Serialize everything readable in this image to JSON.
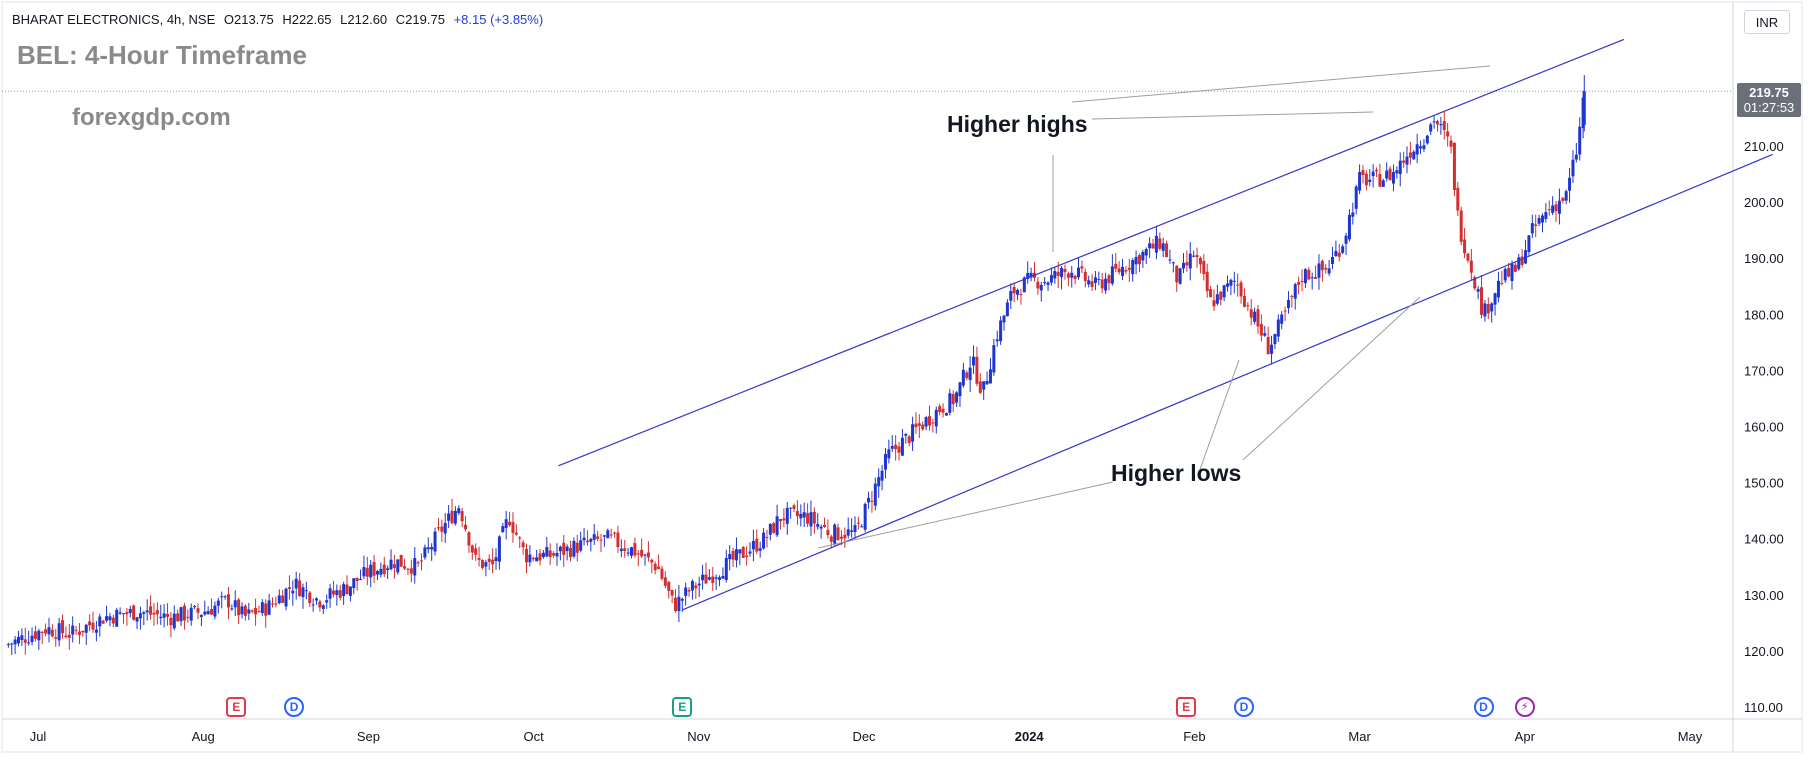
{
  "header": {
    "symbol": "BHARAT ELECTRONICS, 4h, NSE",
    "open": "O213.75",
    "high": "H222.65",
    "low": "L212.60",
    "close": "C219.75",
    "change": "+8.15 (+3.85%)"
  },
  "title": "BEL: 4-Hour Timeframe",
  "brand": "forexgdp.com",
  "currency": "INR",
  "price_tag": {
    "price": "219.75",
    "countdown": "01:27:53"
  },
  "annotations": {
    "higher_highs": "Higher highs",
    "higher_lows": "Higher lows"
  },
  "events": [
    {
      "type": "earnings",
      "label": "E",
      "month_index": 1.2,
      "color": "#e0394a"
    },
    {
      "type": "dividend",
      "label": "D",
      "month_index": 1.55,
      "color": "#2a62ff"
    },
    {
      "type": "earnings",
      "label": "E",
      "month_index": 3.9,
      "color": "#16a085"
    },
    {
      "type": "earnings",
      "label": "E",
      "month_index": 6.95,
      "color": "#e0394a"
    },
    {
      "type": "dividend",
      "label": "D",
      "month_index": 7.3,
      "color": "#2a62ff"
    },
    {
      "type": "dividend",
      "label": "D",
      "month_index": 8.75,
      "color": "#2a62ff"
    },
    {
      "type": "split",
      "label": "⚡",
      "month_index": 9.0,
      "color": "#9c27b0"
    }
  ],
  "colors": {
    "up": "#1e35d0",
    "down": "#d32f2f",
    "trendline": "#3333cc",
    "annotation_line": "#9e9e9e",
    "grid": "#f0f3fa"
  },
  "chart_data": {
    "type": "candlestick",
    "x_tick_labels": [
      "Jul",
      "Aug",
      "Sep",
      "Oct",
      "Nov",
      "Dec",
      "2024",
      "Feb",
      "Mar",
      "Apr",
      "May"
    ],
    "y_tick_labels": [
      "110.00",
      "120.00",
      "130.00",
      "140.00",
      "150.00",
      "160.00",
      "170.00",
      "180.00",
      "190.00",
      "200.00",
      "210.00"
    ],
    "y_range": [
      106.5,
      227.5
    ],
    "x_range_months": [
      -0.2,
      10.5
    ],
    "close_path_points": [
      [
        -0.2,
        121
      ],
      [
        0.05,
        124
      ],
      [
        0.2,
        123
      ],
      [
        0.4,
        126
      ],
      [
        0.6,
        127
      ],
      [
        0.8,
        126
      ],
      [
        1.0,
        127
      ],
      [
        1.15,
        129
      ],
      [
        1.25,
        126
      ],
      [
        1.4,
        128
      ],
      [
        1.55,
        132
      ],
      [
        1.7,
        129
      ],
      [
        1.85,
        131
      ],
      [
        2.0,
        134
      ],
      [
        2.15,
        136
      ],
      [
        2.3,
        135
      ],
      [
        2.45,
        142
      ],
      [
        2.55,
        146
      ],
      [
        2.65,
        136
      ],
      [
        2.75,
        135
      ],
      [
        2.85,
        144
      ],
      [
        2.95,
        137
      ],
      [
        3.1,
        137
      ],
      [
        3.3,
        139
      ],
      [
        3.45,
        140
      ],
      [
        3.6,
        138
      ],
      [
        3.75,
        135
      ],
      [
        3.85,
        128
      ],
      [
        3.95,
        131
      ],
      [
        4.1,
        134
      ],
      [
        4.25,
        137
      ],
      [
        4.4,
        140
      ],
      [
        4.5,
        144
      ],
      [
        4.65,
        144
      ],
      [
        4.8,
        141
      ],
      [
        4.95,
        141
      ],
      [
        5.05,
        148
      ],
      [
        5.15,
        155
      ],
      [
        5.3,
        159
      ],
      [
        5.45,
        163
      ],
      [
        5.55,
        165
      ],
      [
        5.65,
        172
      ],
      [
        5.72,
        166
      ],
      [
        5.8,
        176
      ],
      [
        5.9,
        184
      ],
      [
        6.0,
        186
      ],
      [
        6.1,
        186
      ],
      [
        6.25,
        188
      ],
      [
        6.4,
        185
      ],
      [
        6.55,
        188
      ],
      [
        6.7,
        191
      ],
      [
        6.8,
        193
      ],
      [
        6.9,
        186
      ],
      [
        7.0,
        191
      ],
      [
        7.1,
        182
      ],
      [
        7.25,
        186
      ],
      [
        7.35,
        180
      ],
      [
        7.45,
        174
      ],
      [
        7.55,
        180
      ],
      [
        7.65,
        187
      ],
      [
        7.8,
        188
      ],
      [
        7.9,
        193
      ],
      [
        8.0,
        204
      ],
      [
        8.1,
        204
      ],
      [
        8.2,
        205
      ],
      [
        8.3,
        209
      ],
      [
        8.4,
        212
      ],
      [
        8.45,
        215
      ],
      [
        8.55,
        210
      ],
      [
        8.6,
        196
      ],
      [
        8.68,
        188
      ],
      [
        8.75,
        180
      ],
      [
        8.85,
        186
      ],
      [
        8.95,
        188
      ],
      [
        9.05,
        195
      ],
      [
        9.15,
        199
      ],
      [
        9.25,
        201
      ],
      [
        9.32,
        210
      ],
      [
        9.36,
        219.75
      ]
    ],
    "trendlines": [
      {
        "name": "upper-channel",
        "from": [
          3.15,
          153
        ],
        "to": [
          9.6,
          229
        ]
      },
      {
        "name": "lower-channel",
        "from": [
          3.9,
          127.3
        ],
        "to": [
          10.5,
          208.5
        ]
      }
    ],
    "current_price": 219.75
  }
}
